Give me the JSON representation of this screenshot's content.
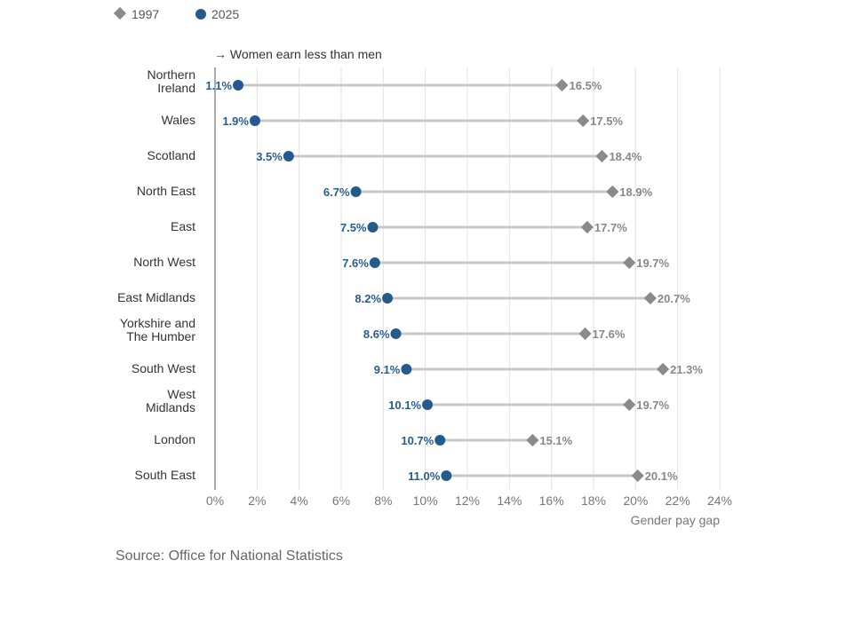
{
  "chart_data": {
    "type": "dumbbell",
    "annotation": "→ Women earn less than men",
    "xlabel": "Gender pay gap",
    "xlim": [
      0,
      24
    ],
    "x_ticks": [
      "0%",
      "2%",
      "4%",
      "6%",
      "8%",
      "10%",
      "12%",
      "14%",
      "16%",
      "18%",
      "20%",
      "22%",
      "24%"
    ],
    "grid": true,
    "legend_position": "top-left",
    "categories": [
      [
        "Northern",
        "Ireland"
      ],
      [
        "Wales"
      ],
      [
        "Scotland"
      ],
      [
        "North East"
      ],
      [
        "East"
      ],
      [
        "North West"
      ],
      [
        "East Midlands"
      ],
      [
        "Yorkshire and",
        "The Humber"
      ],
      [
        "South West"
      ],
      [
        "West",
        "Midlands"
      ],
      [
        "London"
      ],
      [
        "South East"
      ]
    ],
    "series": [
      {
        "name": "1997",
        "marker": "diamond",
        "color": "#8a8a8a",
        "values": [
          16.5,
          17.5,
          18.4,
          18.9,
          17.7,
          19.7,
          20.7,
          17.6,
          21.3,
          19.7,
          15.1,
          20.1
        ],
        "labels": [
          "16.5%",
          "17.5%",
          "18.4%",
          "18.9%",
          "17.7%",
          "19.7%",
          "20.7%",
          "17.6%",
          "21.3%",
          "19.7%",
          "15.1%",
          "20.1%"
        ]
      },
      {
        "name": "2025",
        "marker": "circle",
        "color": "#245b8c",
        "values": [
          1.1,
          1.9,
          3.5,
          6.7,
          7.5,
          7.6,
          8.2,
          8.6,
          9.1,
          10.1,
          10.7,
          11.0
        ],
        "labels": [
          "1.1%",
          "1.9%",
          "3.5%",
          "6.7%",
          "7.5%",
          "7.6%",
          "8.2%",
          "8.6%",
          "9.1%",
          "10.1%",
          "10.7%",
          "11.0%"
        ]
      }
    ],
    "connector_color": "#c8c8c8",
    "grid_color": "#e2e2e2"
  },
  "source": "Source: Office for National Statistics"
}
